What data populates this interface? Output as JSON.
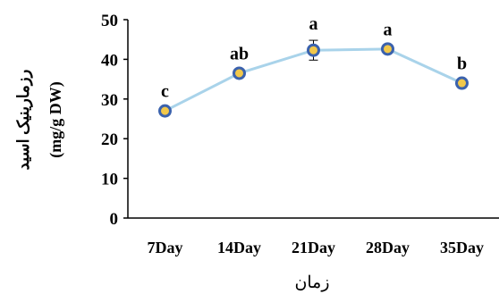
{
  "chart_data": {
    "type": "line",
    "categories": [
      "7Day",
      "14Day",
      "21Day",
      "28Day",
      "35Day"
    ],
    "series": [
      {
        "values": [
          27,
          36.5,
          42.3,
          42.6,
          34
        ],
        "errors": [
          0.8,
          0.8,
          2.5,
          0.7,
          0.8
        ],
        "labels": [
          "c",
          "ab",
          "a",
          "a",
          "b"
        ]
      }
    ],
    "ylim": [
      0,
      50
    ],
    "yticks": [
      "0",
      "10",
      "20",
      "30",
      "40",
      "50"
    ],
    "ylabel": "رزمارینیک اسید",
    "ylabel_unit": "(mg/g DW)",
    "xlabel": "زمان",
    "grid": false,
    "colors": {
      "line": "#a9d3ea",
      "marker_fill": "#f2c84a",
      "marker_edge": "#3b62ad",
      "axis": "#000000",
      "text": "#000000"
    }
  }
}
